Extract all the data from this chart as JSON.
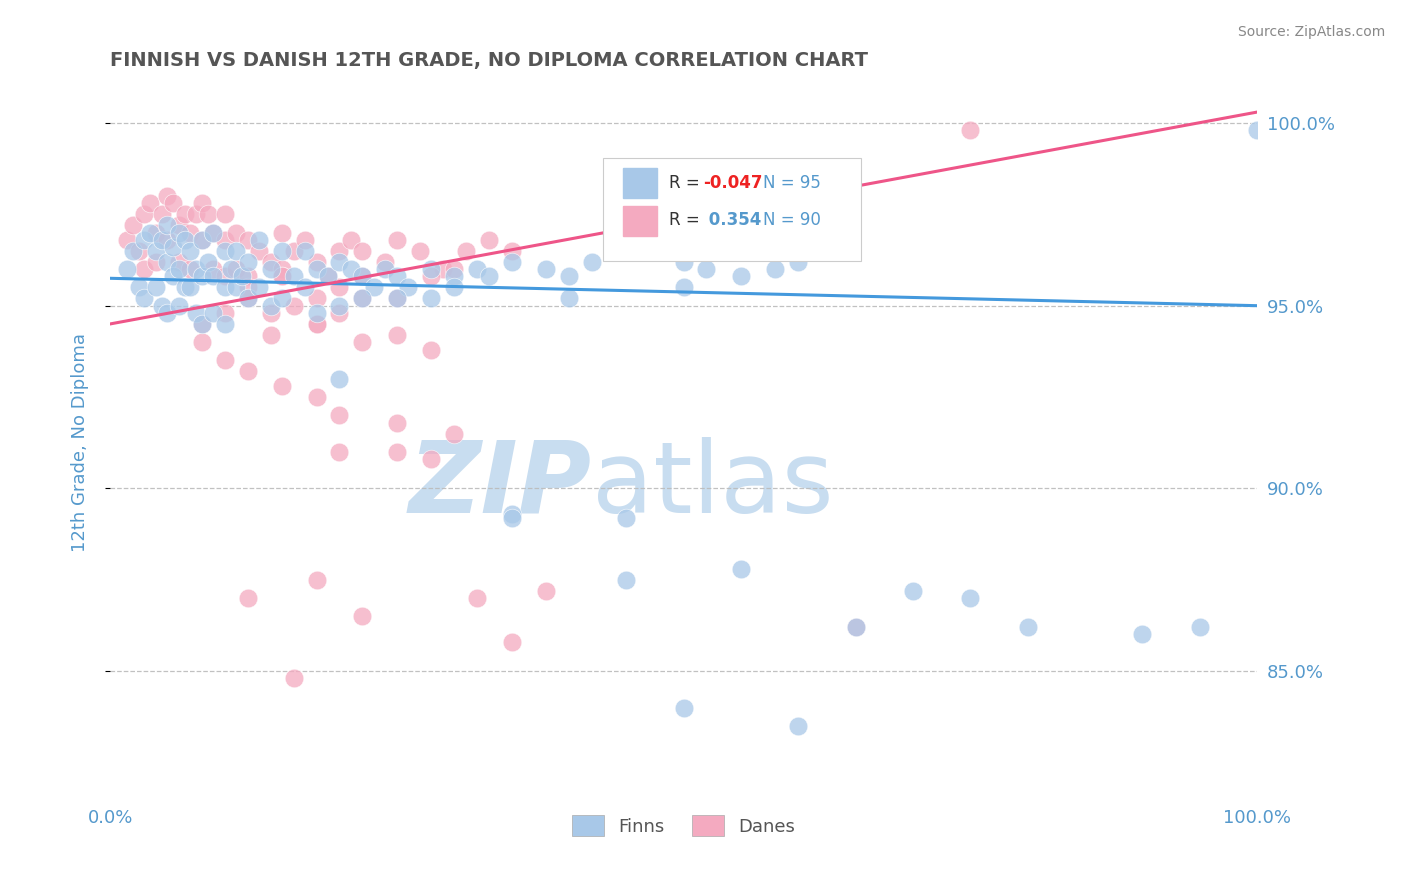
{
  "title": "FINNISH VS DANISH 12TH GRADE, NO DIPLOMA CORRELATION CHART",
  "source_text": "Source: ZipAtlas.com",
  "ylabel": "12th Grade, No Diploma",
  "xlim": [
    0.0,
    1.0
  ],
  "ylim": [
    0.815,
    1.01
  ],
  "yticks": [
    0.85,
    0.9,
    0.95,
    1.0
  ],
  "ytick_labels": [
    "85.0%",
    "90.0%",
    "95.0%",
    "100.0%"
  ],
  "xticks": [
    0.0,
    1.0
  ],
  "xtick_labels": [
    "0.0%",
    "100.0%"
  ],
  "legend_r_blue": "-0.047",
  "legend_n_blue": "95",
  "legend_r_pink": "0.354",
  "legend_n_pink": "90",
  "blue_color": "#a8c8e8",
  "pink_color": "#f4aac0",
  "blue_line_color": "#4499dd",
  "pink_line_color": "#ee5588",
  "watermark_zip": "ZIP",
  "watermark_atlas": "atlas",
  "watermark_color": "#c8ddf0",
  "background_color": "#ffffff",
  "grid_color": "#bbbbbb",
  "title_color": "#555555",
  "axis_label_color": "#5599cc",
  "blue_trend_x": [
    0.0,
    1.0
  ],
  "blue_trend_y": [
    0.9575,
    0.95
  ],
  "pink_trend_x": [
    0.0,
    1.0
  ],
  "pink_trend_y": [
    0.945,
    1.003
  ],
  "blue_dots_x": [
    0.015,
    0.02,
    0.025,
    0.03,
    0.03,
    0.035,
    0.04,
    0.04,
    0.045,
    0.045,
    0.05,
    0.05,
    0.05,
    0.055,
    0.055,
    0.06,
    0.06,
    0.06,
    0.065,
    0.065,
    0.07,
    0.07,
    0.075,
    0.075,
    0.08,
    0.08,
    0.08,
    0.085,
    0.09,
    0.09,
    0.09,
    0.1,
    0.1,
    0.1,
    0.105,
    0.11,
    0.11,
    0.115,
    0.12,
    0.12,
    0.13,
    0.13,
    0.14,
    0.14,
    0.15,
    0.15,
    0.16,
    0.17,
    0.17,
    0.18,
    0.19,
    0.2,
    0.21,
    0.22,
    0.23,
    0.24,
    0.25,
    0.26,
    0.28,
    0.3,
    0.32,
    0.33,
    0.35,
    0.38,
    0.4,
    0.42,
    0.45,
    0.5,
    0.52,
    0.55,
    0.58,
    0.6,
    0.3,
    0.4,
    0.5,
    0.22,
    0.28,
    0.18,
    0.2,
    0.25,
    0.35,
    0.45,
    0.55,
    0.65,
    0.7,
    0.75,
    0.8,
    0.9,
    0.95,
    1.0,
    0.2,
    0.35,
    0.45,
    0.5,
    0.6
  ],
  "blue_dots_y": [
    0.96,
    0.965,
    0.955,
    0.968,
    0.952,
    0.97,
    0.965,
    0.955,
    0.968,
    0.95,
    0.972,
    0.962,
    0.948,
    0.966,
    0.958,
    0.97,
    0.96,
    0.95,
    0.968,
    0.955,
    0.965,
    0.955,
    0.96,
    0.948,
    0.968,
    0.958,
    0.945,
    0.962,
    0.97,
    0.958,
    0.948,
    0.965,
    0.955,
    0.945,
    0.96,
    0.965,
    0.955,
    0.958,
    0.962,
    0.952,
    0.968,
    0.955,
    0.96,
    0.95,
    0.965,
    0.952,
    0.958,
    0.965,
    0.955,
    0.96,
    0.958,
    0.962,
    0.96,
    0.958,
    0.955,
    0.96,
    0.958,
    0.955,
    0.96,
    0.958,
    0.96,
    0.958,
    0.962,
    0.96,
    0.958,
    0.962,
    0.965,
    0.962,
    0.96,
    0.958,
    0.96,
    0.962,
    0.955,
    0.952,
    0.955,
    0.952,
    0.952,
    0.948,
    0.95,
    0.952,
    0.893,
    0.892,
    0.878,
    0.862,
    0.872,
    0.87,
    0.862,
    0.86,
    0.862,
    0.998,
    0.93,
    0.892,
    0.875,
    0.84,
    0.835
  ],
  "pink_dots_x": [
    0.015,
    0.02,
    0.025,
    0.03,
    0.03,
    0.035,
    0.04,
    0.04,
    0.045,
    0.05,
    0.05,
    0.055,
    0.06,
    0.06,
    0.065,
    0.07,
    0.07,
    0.075,
    0.08,
    0.08,
    0.085,
    0.09,
    0.09,
    0.1,
    0.1,
    0.1,
    0.11,
    0.11,
    0.12,
    0.12,
    0.13,
    0.14,
    0.15,
    0.15,
    0.16,
    0.17,
    0.18,
    0.19,
    0.2,
    0.21,
    0.22,
    0.24,
    0.25,
    0.27,
    0.29,
    0.31,
    0.33,
    0.35,
    0.12,
    0.15,
    0.18,
    0.2,
    0.22,
    0.25,
    0.28,
    0.3,
    0.08,
    0.1,
    0.12,
    0.14,
    0.15,
    0.16,
    0.18,
    0.2,
    0.22,
    0.14,
    0.18,
    0.22,
    0.25,
    0.28,
    0.08,
    0.1,
    0.12,
    0.15,
    0.18,
    0.2,
    0.25,
    0.3,
    0.25,
    0.75,
    0.35,
    0.65,
    0.2,
    0.28,
    0.32,
    0.38,
    0.18,
    0.22,
    0.12,
    0.16
  ],
  "pink_dots_y": [
    0.968,
    0.972,
    0.965,
    0.975,
    0.96,
    0.978,
    0.97,
    0.962,
    0.975,
    0.98,
    0.968,
    0.978,
    0.972,
    0.962,
    0.975,
    0.97,
    0.96,
    0.975,
    0.978,
    0.968,
    0.975,
    0.97,
    0.96,
    0.975,
    0.968,
    0.958,
    0.97,
    0.96,
    0.968,
    0.958,
    0.965,
    0.962,
    0.97,
    0.96,
    0.965,
    0.968,
    0.962,
    0.958,
    0.965,
    0.968,
    0.965,
    0.962,
    0.968,
    0.965,
    0.96,
    0.965,
    0.968,
    0.965,
    0.955,
    0.958,
    0.952,
    0.955,
    0.958,
    0.952,
    0.958,
    0.96,
    0.945,
    0.948,
    0.952,
    0.948,
    0.958,
    0.95,
    0.945,
    0.948,
    0.952,
    0.942,
    0.945,
    0.94,
    0.942,
    0.938,
    0.94,
    0.935,
    0.932,
    0.928,
    0.925,
    0.92,
    0.918,
    0.915,
    0.91,
    0.998,
    0.858,
    0.862,
    0.91,
    0.908,
    0.87,
    0.872,
    0.875,
    0.865,
    0.87,
    0.848
  ]
}
